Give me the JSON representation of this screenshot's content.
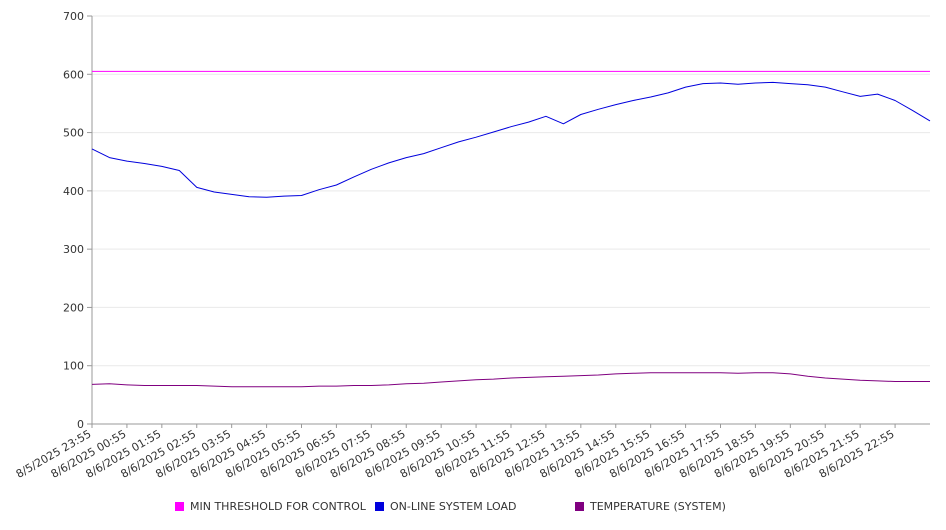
{
  "chart_data": {
    "type": "line",
    "title": "",
    "xlabel": "",
    "ylabel": "",
    "ylim": [
      0,
      700
    ],
    "y_ticks": [
      0,
      100,
      200,
      300,
      400,
      500,
      600,
      700
    ],
    "grid": true,
    "legend_position": "bottom",
    "x_tick_labels": [
      "8/5/2025 23:55",
      "8/6/2025 00:55",
      "8/6/2025 01:55",
      "8/6/2025 02:55",
      "8/6/2025 03:55",
      "8/6/2025 04:55",
      "8/6/2025 05:55",
      "8/6/2025 06:55",
      "8/6/2025 07:55",
      "8/6/2025 08:55",
      "8/6/2025 09:55",
      "8/6/2025 10:55",
      "8/6/2025 11:55",
      "8/6/2025 12:55",
      "8/6/2025 13:55",
      "8/6/2025 14:55",
      "8/6/2025 15:55",
      "8/6/2025 16:55",
      "8/6/2025 17:55",
      "8/6/2025 18:55",
      "8/6/2025 19:55",
      "8/6/2025 20:55",
      "8/6/2025 21:55",
      "8/6/2025 22:55"
    ],
    "x_hours": [
      0,
      0.5,
      1,
      1.5,
      2,
      2.5,
      3,
      3.5,
      4,
      4.5,
      5,
      5.5,
      6,
      6.5,
      7,
      7.5,
      8,
      8.5,
      9,
      9.5,
      10,
      10.5,
      11,
      11.5,
      12,
      12.5,
      13,
      13.5,
      14,
      14.5,
      15,
      15.5,
      16,
      16.5,
      17,
      17.5,
      18,
      18.5,
      19,
      19.5,
      20,
      20.5,
      21,
      21.5,
      22,
      22.5,
      23,
      23.5,
      24
    ],
    "x_span_hours": 24,
    "series": [
      {
        "name": "MIN THRESHOLD FOR CONTROL",
        "color": "#ff00ff",
        "values": [
          605,
          605,
          605,
          605,
          605,
          605,
          605,
          605,
          605,
          605,
          605,
          605,
          605,
          605,
          605,
          605,
          605,
          605,
          605,
          605,
          605,
          605,
          605,
          605,
          605,
          605,
          605,
          605,
          605,
          605,
          605,
          605,
          605,
          605,
          605,
          605,
          605,
          605,
          605,
          605,
          605,
          605,
          605,
          605,
          605,
          605,
          605,
          605,
          605
        ]
      },
      {
        "name": "ON-LINE SYSTEM LOAD",
        "color": "#0000dd",
        "values": [
          472,
          457,
          451,
          447,
          442,
          435,
          406,
          398,
          394,
          390,
          389,
          391,
          392,
          402,
          410,
          424,
          437,
          448,
          457,
          464,
          474,
          484,
          492,
          501,
          510,
          518,
          528,
          515,
          531,
          540,
          548,
          555,
          561,
          568,
          578,
          584,
          585,
          583,
          585,
          586,
          584,
          582,
          578,
          570,
          562,
          566,
          555,
          538,
          520
        ]
      },
      {
        "name": "TEMPERATURE (SYSTEM)",
        "color": "#800080",
        "values": [
          68,
          69,
          67,
          66,
          66,
          66,
          66,
          65,
          64,
          64,
          64,
          64,
          64,
          65,
          65,
          66,
          66,
          67,
          69,
          70,
          72,
          74,
          76,
          77,
          79,
          80,
          81,
          82,
          83,
          84,
          86,
          87,
          88,
          88,
          88,
          88,
          88,
          87,
          88,
          88,
          86,
          82,
          79,
          77,
          75,
          74,
          73,
          73,
          73
        ]
      }
    ]
  }
}
